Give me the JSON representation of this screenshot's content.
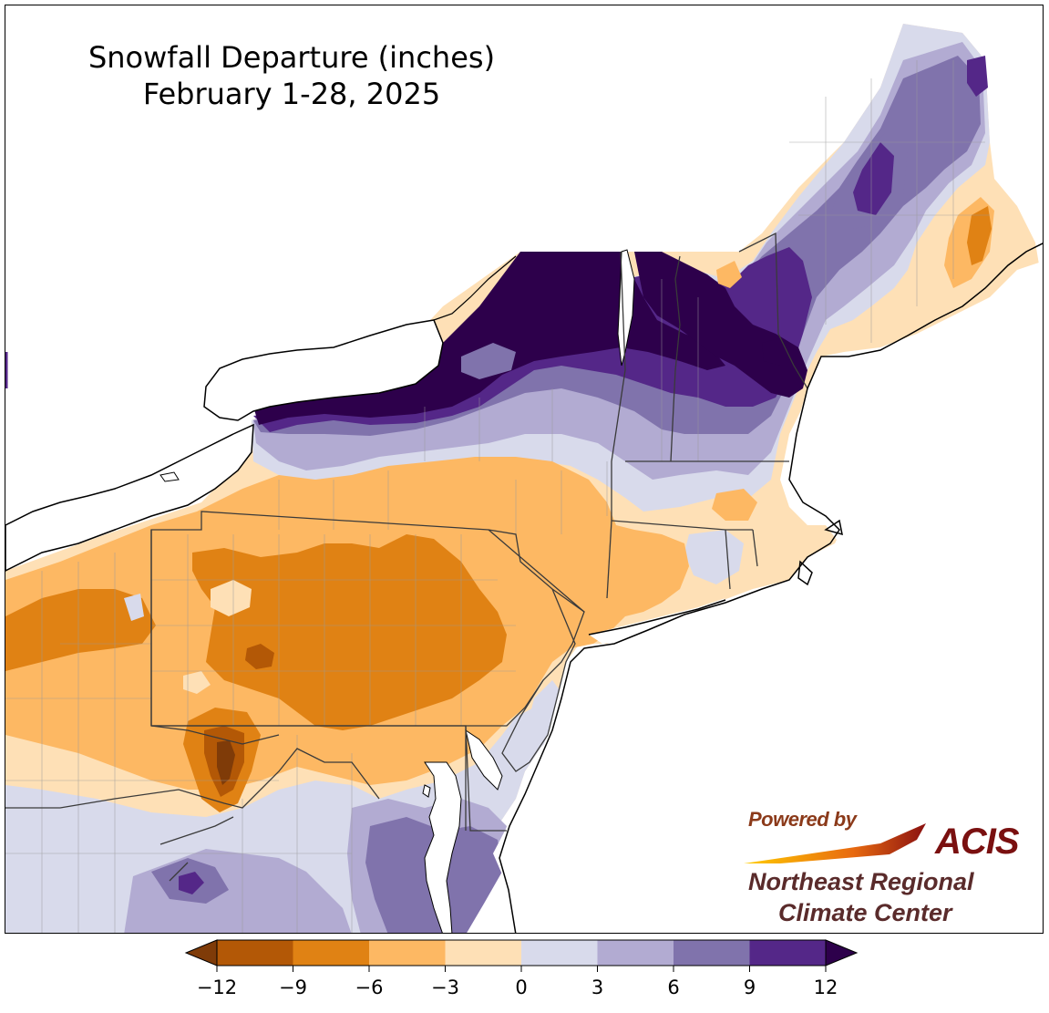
{
  "title": {
    "line1": "Snowfall Departure (inches)",
    "line2": "February 1-28, 2025"
  },
  "credit": {
    "powered_by": "Powered by",
    "acis": "ACIS",
    "org_line1": "Northeast Regional",
    "org_line2": "Climate Center"
  },
  "colorbar": {
    "unit": "inches",
    "extend": "both",
    "ticks": [
      "−12",
      "−9",
      "−6",
      "−3",
      "0",
      "3",
      "6",
      "9",
      "12"
    ],
    "bins": [
      {
        "range": [
          -12,
          -9
        ],
        "color": "#b35806"
      },
      {
        "range": [
          -9,
          -6
        ],
        "color": "#e08214"
      },
      {
        "range": [
          -6,
          -3
        ],
        "color": "#fdb863"
      },
      {
        "range": [
          -3,
          0
        ],
        "color": "#fee0b6"
      },
      {
        "range": [
          0,
          3
        ],
        "color": "#d8daeb"
      },
      {
        "range": [
          3,
          6
        ],
        "color": "#b2abd2"
      },
      {
        "range": [
          6,
          9
        ],
        "color": "#8073ac"
      },
      {
        "range": [
          9,
          12
        ],
        "color": "#542788"
      }
    ],
    "under_color": "#7f3b08",
    "over_color": "#2d004b"
  },
  "colors": {
    "water": "#ffffff",
    "state_border": "#3a3a3a",
    "county_border": "#9a9a9a"
  }
}
